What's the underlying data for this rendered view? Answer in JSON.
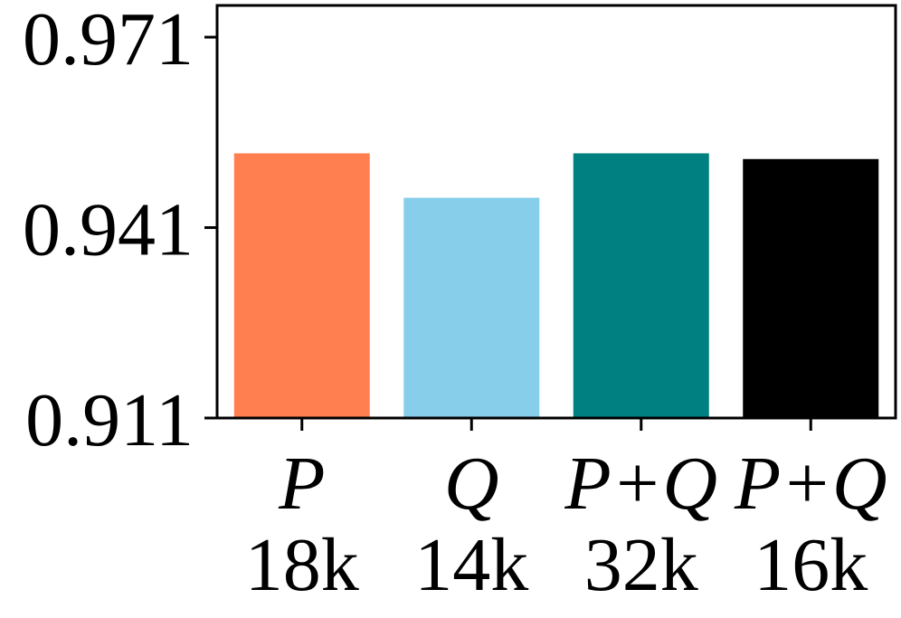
{
  "chart_data": {
    "type": "bar",
    "categories": [
      {
        "label": "P",
        "sublabel": "18k"
      },
      {
        "label": "Q",
        "sublabel": "14k"
      },
      {
        "label": "P+Q",
        "sublabel": "32k"
      },
      {
        "label": "P+Q",
        "sublabel": "16k"
      }
    ],
    "values": [
      0.9527,
      0.9457,
      0.9527,
      0.9518
    ],
    "colors": [
      "#ff7f50",
      "#87ceeb",
      "#008080",
      "#000000"
    ],
    "ylim": [
      0.911,
      0.976
    ],
    "yticks": [
      0.911,
      0.941,
      0.971
    ],
    "ytick_labels": [
      "0.911",
      "0.941",
      "0.971"
    ],
    "title": "",
    "xlabel": "",
    "ylabel": "",
    "grid": false
  }
}
